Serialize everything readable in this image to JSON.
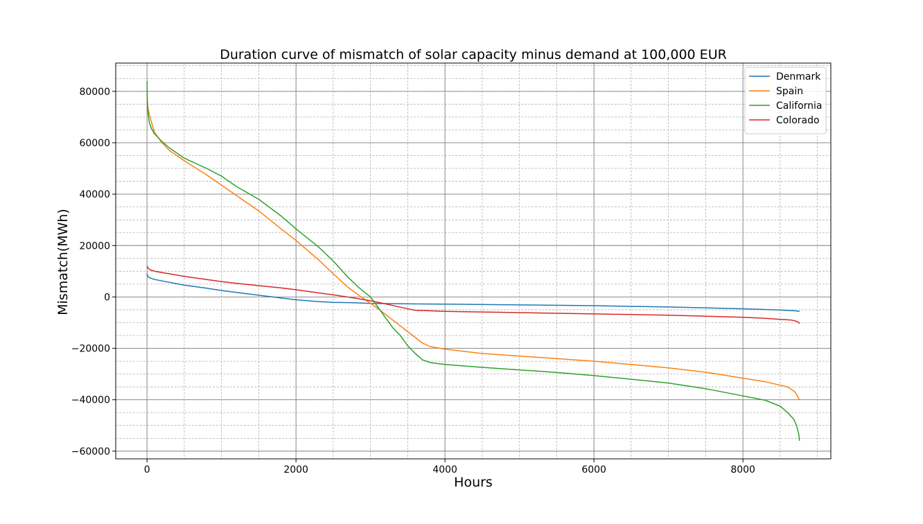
{
  "chart_data": {
    "type": "line",
    "title": "Duration curve of mismatch of solar capacity minus demand at 100,000 EUR",
    "xlabel": "Hours",
    "ylabel": "Mismatch(MWh)",
    "xlim": [
      -420,
      9180
    ],
    "ylim": [
      -63000,
      91000
    ],
    "x_ticks": [
      0,
      2000,
      4000,
      6000,
      8000
    ],
    "x_tick_labels": [
      "0",
      "2000",
      "4000",
      "6000",
      "8000"
    ],
    "y_ticks": [
      -60000,
      -40000,
      -20000,
      0,
      20000,
      40000,
      60000,
      80000
    ],
    "y_tick_labels": [
      "−60000",
      "−40000",
      "−20000",
      "0",
      "20000",
      "40000",
      "60000",
      "80000"
    ],
    "x_minor_step": 500,
    "y_minor_step": 5000,
    "grid": true,
    "legend_position": "top-right",
    "series": [
      {
        "name": "Denmark",
        "color": "#1f77b4",
        "x": [
          0,
          10,
          30,
          100,
          300,
          500,
          800,
          1000,
          1300,
          1600,
          2000,
          2300,
          2500,
          2800,
          3000,
          3500,
          4000,
          5000,
          6000,
          7000,
          8000,
          8500,
          8700,
          8760
        ],
        "y": [
          9000,
          8000,
          7500,
          6800,
          5700,
          4600,
          3400,
          2500,
          1400,
          300,
          -1100,
          -1800,
          -2100,
          -2300,
          -2500,
          -2700,
          -2800,
          -3100,
          -3400,
          -3900,
          -4600,
          -5100,
          -5400,
          -5600
        ]
      },
      {
        "name": "Spain",
        "color": "#ff7f0e",
        "x": [
          0,
          10,
          30,
          100,
          200,
          300,
          500,
          800,
          1000,
          1200,
          1500,
          1800,
          2000,
          2300,
          2500,
          2700,
          2900,
          3000,
          3100,
          3300,
          3500,
          3700,
          3800,
          4000,
          4500,
          5000,
          5500,
          6000,
          6500,
          7000,
          7500,
          8000,
          8300,
          8600,
          8700,
          8760
        ],
        "y": [
          79000,
          74000,
          71000,
          64000,
          60000,
          57000,
          53000,
          47500,
          43500,
          39500,
          33500,
          26500,
          22000,
          14500,
          9000,
          3700,
          -500,
          -2500,
          -4500,
          -9000,
          -13500,
          -18000,
          -19300,
          -20300,
          -22000,
          -23000,
          -24000,
          -25000,
          -26300,
          -27600,
          -29300,
          -31600,
          -33000,
          -35000,
          -37000,
          -40000
        ]
      },
      {
        "name": "California",
        "color": "#2ca02c",
        "x": [
          0,
          5,
          15,
          30,
          60,
          100,
          200,
          300,
          500,
          800,
          1000,
          1200,
          1500,
          1800,
          2000,
          2300,
          2500,
          2700,
          2850,
          3000,
          3100,
          3200,
          3300,
          3400,
          3500,
          3600,
          3700,
          3750,
          3800,
          4000,
          4500,
          5000,
          5500,
          6000,
          6500,
          7000,
          7500,
          8000,
          8300,
          8500,
          8600,
          8680,
          8720,
          8750,
          8760
        ],
        "y": [
          84000,
          75000,
          71000,
          68000,
          65500,
          63500,
          60500,
          58000,
          54000,
          50000,
          47000,
          43000,
          38000,
          31500,
          26500,
          19500,
          14000,
          7600,
          3500,
          0,
          -4000,
          -8000,
          -12000,
          -15000,
          -19000,
          -22000,
          -24500,
          -25000,
          -25500,
          -26300,
          -27400,
          -28400,
          -29400,
          -30600,
          -32000,
          -33500,
          -35700,
          -38500,
          -40200,
          -42500,
          -45000,
          -47500,
          -50000,
          -53500,
          -56000
        ]
      },
      {
        "name": "Colorado",
        "color": "#d62728",
        "x": [
          0,
          20,
          50,
          100,
          200,
          300,
          500,
          800,
          1000,
          1200,
          1500,
          1800,
          2000,
          2200,
          2500,
          2800,
          3000,
          3200,
          3400,
          3600,
          3800,
          4000,
          5000,
          6000,
          7000,
          8000,
          8300,
          8500,
          8650,
          8700,
          8740,
          8760
        ],
        "y": [
          12000,
          11000,
          10500,
          10000,
          9500,
          9000,
          8000,
          6800,
          6000,
          5300,
          4400,
          3500,
          2800,
          2000,
          800,
          -500,
          -1500,
          -2700,
          -4000,
          -5200,
          -5400,
          -5600,
          -6100,
          -6600,
          -7100,
          -7900,
          -8300,
          -8700,
          -9000,
          -9300,
          -9700,
          -10400
        ]
      }
    ]
  }
}
